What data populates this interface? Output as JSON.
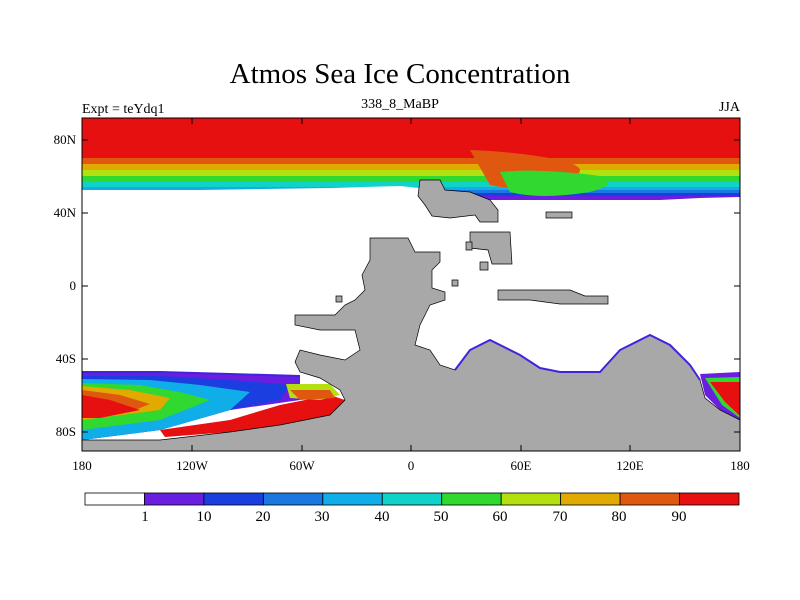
{
  "map": {
    "title": "Atmos Sea Ice Concentration",
    "left_label": "Expt = teYdq1",
    "center_label": "338_8_MaBP",
    "right_label": "JJA",
    "lat_ticks": [
      "80N",
      "40N",
      "0",
      "40S",
      "80S"
    ],
    "lon_ticks": [
      "180",
      "120W",
      "60W",
      "0",
      "60E",
      "120E",
      "180"
    ],
    "land_color": "#a8a8a8"
  },
  "colorbar": {
    "labels": [
      "1",
      "10",
      "20",
      "30",
      "40",
      "50",
      "60",
      "70",
      "80",
      "90"
    ],
    "colors": [
      "#ffffff",
      "#6a1ee0",
      "#1a3ee0",
      "#1a78e0",
      "#10aee8",
      "#10d2c8",
      "#30d830",
      "#b4e010",
      "#e0aa00",
      "#e05810",
      "#e61010"
    ]
  }
}
